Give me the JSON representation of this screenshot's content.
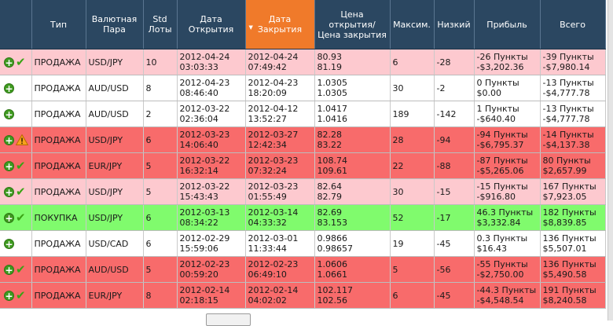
{
  "columns": {
    "type": "Тип",
    "pair": "Валютная Пара",
    "lots": "Std Лоты",
    "open_date": "Дата Открытия",
    "close_date": "Дата Закрытия",
    "price": "Цена открытия/ Цена закрытия",
    "max": "Максим.",
    "low": "Низкий",
    "profit": "Прибыль",
    "total": "Всего"
  },
  "colors": {
    "header_bg": "#2b4761",
    "sorted_header_bg": "#f07a2a",
    "loss_row": "#f86b6b",
    "light_row": "#fdc9cf",
    "gain_row": "#80fb6d"
  },
  "rows": [
    {
      "style": "r-pink",
      "status_icon": "check-icon",
      "type": "ПРОДАЖА",
      "pair": "USD/JPY",
      "lots": "10",
      "open_date": "2012-04-24",
      "open_time": "03:03:33",
      "close_date": "2012-04-24",
      "close_time": "07:49:42",
      "open_price": "80.93",
      "close_price": "81.19",
      "max": "6",
      "low": "-28",
      "profit_points": "-26 Пункты",
      "profit_money": "-$3,202.36",
      "total_points": "-39 Пункты",
      "total_money": "-$7,980.14"
    },
    {
      "style": "r-white",
      "status_icon": "",
      "type": "ПРОДАЖА",
      "pair": "AUD/USD",
      "lots": "8",
      "open_date": "2012-04-23",
      "open_time": "08:46:40",
      "close_date": "2012-04-23",
      "close_time": "18:20:09",
      "open_price": "1.0305",
      "close_price": "1.0305",
      "max": "30",
      "low": "-2",
      "profit_points": "0 Пункты",
      "profit_money": "$0.00",
      "total_points": "-13 Пункты",
      "total_money": "-$4,777.78"
    },
    {
      "style": "r-white",
      "status_icon": "",
      "type": "ПРОДАЖА",
      "pair": "AUD/USD",
      "lots": "2",
      "open_date": "2012-03-22",
      "open_time": "02:36:04",
      "close_date": "2012-04-12",
      "close_time": "13:52:27",
      "open_price": "1.0417",
      "close_price": "1.0416",
      "max": "189",
      "low": "-142",
      "profit_points": "1 Пункты",
      "profit_money": "-$640.40",
      "total_points": "-13 Пункты",
      "total_money": "-$4,777.78"
    },
    {
      "style": "r-red",
      "status_icon": "warning-icon",
      "type": "ПРОДАЖА",
      "pair": "USD/JPY",
      "lots": "6",
      "open_date": "2012-03-23",
      "open_time": "14:06:40",
      "close_date": "2012-03-27",
      "close_time": "12:42:34",
      "open_price": "82.28",
      "close_price": "83.22",
      "max": "28",
      "low": "-94",
      "profit_points": "-94 Пункты",
      "profit_money": "-$6,795.37",
      "total_points": "-14 Пункты",
      "total_money": "-$4,137.38"
    },
    {
      "style": "r-red",
      "status_icon": "check-icon",
      "type": "ПРОДАЖА",
      "pair": "EUR/JPY",
      "lots": "5",
      "open_date": "2012-03-22",
      "open_time": "16:32:14",
      "close_date": "2012-03-23",
      "close_time": "07:32:24",
      "open_price": "108.74",
      "close_price": "109.61",
      "max": "22",
      "low": "-88",
      "profit_points": "-87 Пункты",
      "profit_money": "-$5,265.06",
      "total_points": "80 Пункты",
      "total_money": "$2,657.99"
    },
    {
      "style": "r-pink",
      "status_icon": "check-icon",
      "type": "ПРОДАЖА",
      "pair": "USD/JPY",
      "lots": "5",
      "open_date": "2012-03-22",
      "open_time": "15:43:43",
      "close_date": "2012-03-23",
      "close_time": "01:55:49",
      "open_price": "82.64",
      "close_price": "82.79",
      "max": "30",
      "low": "-15",
      "profit_points": "-15 Пункты",
      "profit_money": "-$916.80",
      "total_points": "167 Пункты",
      "total_money": "$7,923.05"
    },
    {
      "style": "r-green",
      "status_icon": "check-icon",
      "type": "ПОКУПКА",
      "pair": "USD/JPY",
      "lots": "6",
      "open_date": "2012-03-13",
      "open_time": "08:34:22",
      "close_date": "2012-03-14",
      "close_time": "04:33:32",
      "open_price": "82.69",
      "close_price": "83.153",
      "max": "52",
      "low": "-17",
      "profit_points": "46.3 Пункты",
      "profit_money": "$3,332.84",
      "total_points": "182 Пункты",
      "total_money": "$8,839.85"
    },
    {
      "style": "r-white",
      "status_icon": "",
      "type": "ПРОДАЖА",
      "pair": "USD/CAD",
      "lots": "6",
      "open_date": "2012-02-29",
      "open_time": "15:59:06",
      "close_date": "2012-03-01",
      "close_time": "11:33:44",
      "open_price": "0.9866",
      "close_price": "0.98657",
      "max": "19",
      "low": "-45",
      "profit_points": "0.3 Пункты",
      "profit_money": "$16.43",
      "total_points": "136 Пункты",
      "total_money": "$5,507.01"
    },
    {
      "style": "r-red",
      "status_icon": "check-icon",
      "type": "ПРОДАЖА",
      "pair": "AUD/USD",
      "lots": "5",
      "open_date": "2012-02-23",
      "open_time": "00:59:20",
      "close_date": "2012-02-23",
      "close_time": "06:49:10",
      "open_price": "1.0606",
      "close_price": "1.0661",
      "max": "5",
      "low": "-56",
      "profit_points": "-55 Пункты",
      "profit_money": "-$2,750.00",
      "total_points": "136 Пункты",
      "total_money": "$5,490.58"
    },
    {
      "style": "r-red",
      "status_icon": "check-icon",
      "type": "ПРОДАЖА",
      "pair": "EUR/JPY",
      "lots": "8",
      "open_date": "2012-02-14",
      "open_time": "02:18:15",
      "close_date": "2012-02-14",
      "close_time": "04:02:02",
      "open_price": "102.117",
      "close_price": "102.56",
      "max": "6",
      "low": "-45",
      "profit_points": "-44.3 Пункты",
      "profit_money": "-$4,548.54",
      "total_points": "191 Пункты",
      "total_money": "$8,240.58"
    }
  ]
}
